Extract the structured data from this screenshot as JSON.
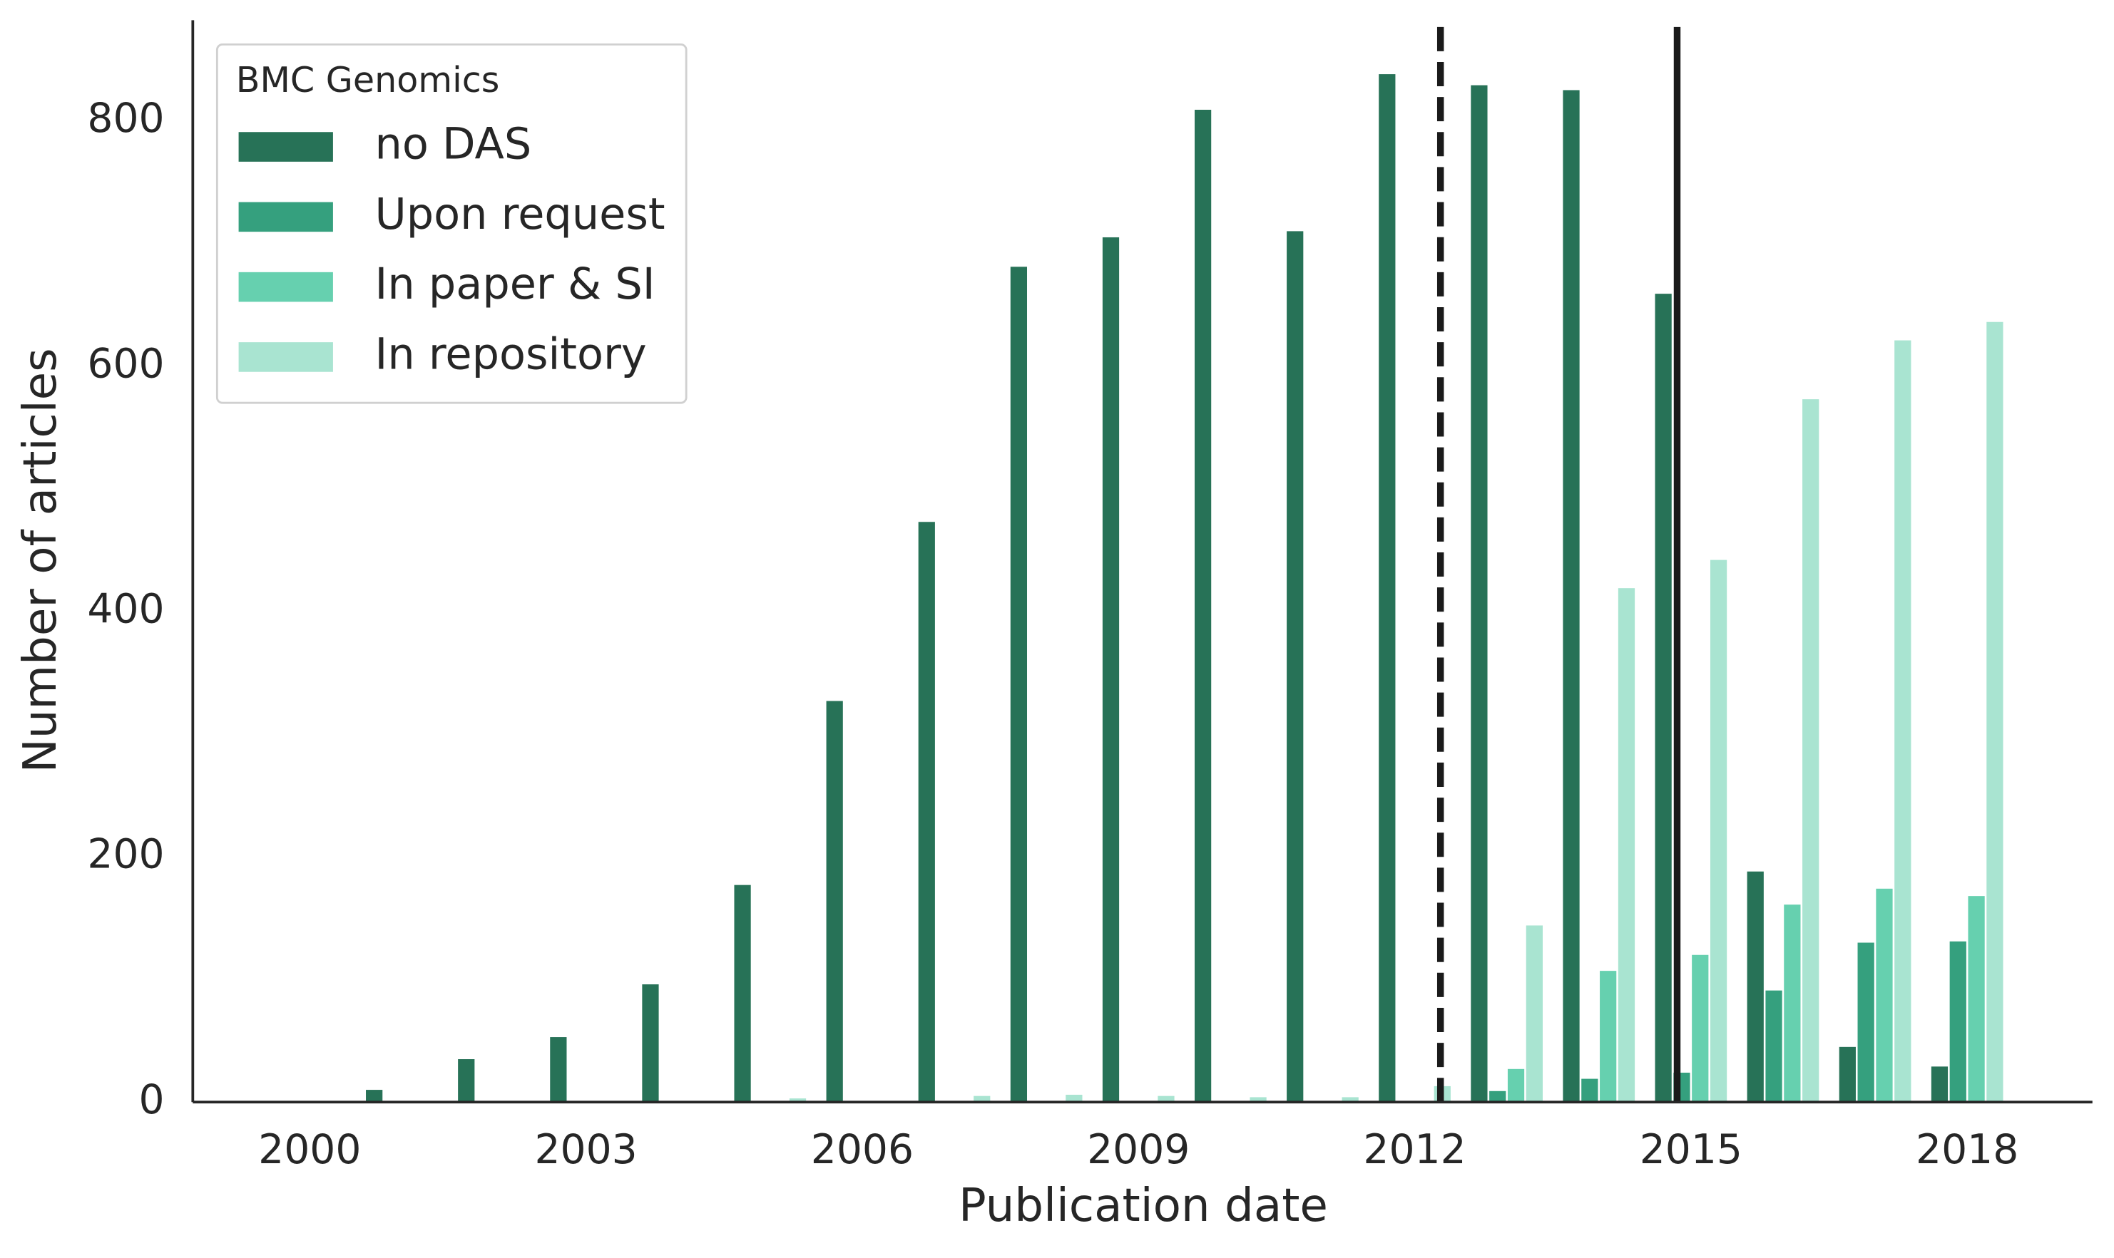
{
  "chart_data": {
    "type": "bar",
    "x_label": "Publication date",
    "y_label": "Number of articles",
    "x": [
      2000,
      2001,
      2002,
      2003,
      2004,
      2005,
      2006,
      2007,
      2008,
      2009,
      2010,
      2011,
      2012,
      2013,
      2014,
      2015,
      2016,
      2017,
      2018
    ],
    "xlim": [
      1998.73,
      2019.36
    ],
    "xticks": [
      2000,
      2003,
      2006,
      2009,
      2012,
      2015,
      2018
    ],
    "ylim": [
      0,
      882
    ],
    "yticks": [
      0,
      200,
      400,
      600,
      800
    ],
    "legend_title": "BMC Genomics",
    "legend_position": "upper left",
    "series": [
      {
        "name": "no DAS",
        "color": "#277257",
        "values": [
          0,
          10,
          35,
          53,
          96,
          177,
          327,
          473,
          681,
          705,
          809,
          710,
          838,
          829,
          825,
          659,
          188,
          45,
          29
        ]
      },
      {
        "name": "Upon request",
        "color": "#35a07e",
        "values": [
          0,
          0,
          0,
          0,
          0,
          0,
          0,
          0,
          0,
          0,
          0,
          0,
          0,
          9,
          19,
          24,
          91,
          130,
          131
        ]
      },
      {
        "name": "In paper & SI",
        "color": "#66d0af",
        "values": [
          0,
          0,
          0,
          0,
          0,
          0,
          0,
          0,
          0,
          0,
          0,
          0,
          0,
          27,
          107,
          120,
          161,
          174,
          168
        ]
      },
      {
        "name": "In repository",
        "color": "#a9e4d1",
        "values": [
          0,
          0,
          0,
          0,
          0,
          3,
          0,
          5,
          6,
          5,
          4,
          4,
          13,
          144,
          419,
          442,
          573,
          621,
          636
        ]
      }
    ],
    "vlines": [
      {
        "x": 2012.28,
        "style": "dashed",
        "color": "#1a1a1a"
      },
      {
        "x": 2014.85,
        "style": "solid",
        "color": "#1a1a1a"
      }
    ]
  }
}
